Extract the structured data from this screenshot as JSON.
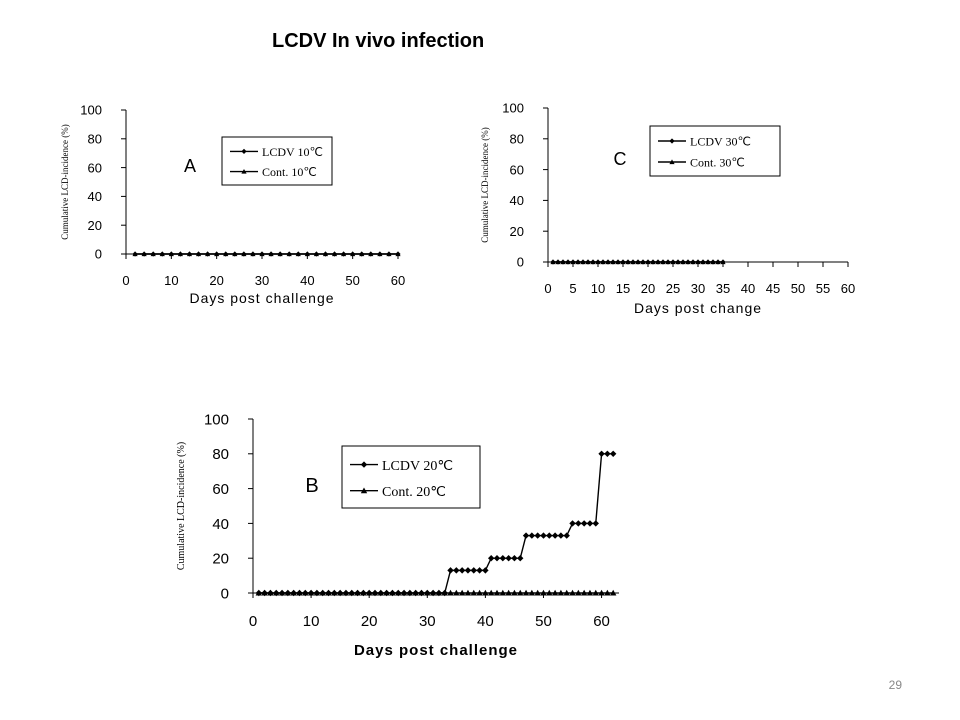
{
  "slide": {
    "title": "LCDV In vivo infection",
    "page_number": "29"
  },
  "chart_data": [
    {
      "id": "A",
      "type": "line",
      "panel_label": "A",
      "xlabel": "Days post challenge",
      "ylabel": "Cumulative LCD-incidence (%)",
      "xlim": [
        0,
        60
      ],
      "ylim": [
        0,
        100
      ],
      "xticks": [
        "0",
        "10",
        "20",
        "30",
        "40",
        "50",
        "60"
      ],
      "yticks": [
        "0",
        "20",
        "40",
        "60",
        "80",
        "100"
      ],
      "legend_position": "top-right",
      "series": [
        {
          "name": "LCDV 10℃",
          "marker": "diamond",
          "x": [
            2,
            4,
            6,
            8,
            10,
            12,
            14,
            16,
            18,
            20,
            22,
            24,
            26,
            28,
            30,
            32,
            34,
            36,
            38,
            40,
            42,
            44,
            46,
            48,
            50,
            52,
            54,
            56,
            58,
            60
          ],
          "y": [
            0,
            0,
            0,
            0,
            0,
            0,
            0,
            0,
            0,
            0,
            0,
            0,
            0,
            0,
            0,
            0,
            0,
            0,
            0,
            0,
            0,
            0,
            0,
            0,
            0,
            0,
            0,
            0,
            0,
            0
          ]
        },
        {
          "name": "Cont. 10℃",
          "marker": "triangle",
          "x": [
            2,
            4,
            6,
            8,
            10,
            12,
            14,
            16,
            18,
            20,
            22,
            24,
            26,
            28,
            30,
            32,
            34,
            36,
            38,
            40,
            42,
            44,
            46,
            48,
            50,
            52,
            54,
            56,
            58,
            60
          ],
          "y": [
            0,
            0,
            0,
            0,
            0,
            0,
            0,
            0,
            0,
            0,
            0,
            0,
            0,
            0,
            0,
            0,
            0,
            0,
            0,
            0,
            0,
            0,
            0,
            0,
            0,
            0,
            0,
            0,
            0,
            0
          ]
        }
      ]
    },
    {
      "id": "C",
      "type": "line",
      "panel_label": "C",
      "xlabel": "Days post change",
      "ylabel": "Cumulative LCD-incidence (%)",
      "xlim": [
        0,
        60
      ],
      "ylim": [
        0,
        100
      ],
      "xticks": [
        "0",
        "5",
        "10",
        "15",
        "20",
        "25",
        "30",
        "35",
        "40",
        "45",
        "50",
        "55",
        "60"
      ],
      "yticks": [
        "0",
        "20",
        "40",
        "60",
        "80",
        "100"
      ],
      "legend_position": "top-right",
      "series": [
        {
          "name": "LCDV 30℃",
          "marker": "diamond",
          "x": [
            1,
            2,
            3,
            4,
            5,
            6,
            7,
            8,
            9,
            10,
            11,
            12,
            13,
            14,
            15,
            16,
            17,
            18,
            19,
            20,
            21,
            22,
            23,
            24,
            25,
            26,
            27,
            28,
            29,
            30,
            31,
            32,
            33,
            34,
            35
          ],
          "y": [
            0,
            0,
            0,
            0,
            0,
            0,
            0,
            0,
            0,
            0,
            0,
            0,
            0,
            0,
            0,
            0,
            0,
            0,
            0,
            0,
            0,
            0,
            0,
            0,
            0,
            0,
            0,
            0,
            0,
            0,
            0,
            0,
            0,
            0,
            0
          ]
        },
        {
          "name": "Cont. 30℃",
          "marker": "triangle",
          "x": [
            1,
            2,
            3,
            4,
            5,
            6,
            7,
            8,
            9,
            10,
            11,
            12,
            13,
            14,
            15,
            16,
            17,
            18,
            19,
            20,
            21,
            22,
            23,
            24,
            25,
            26,
            27,
            28,
            29,
            30,
            31,
            32,
            33,
            34,
            35
          ],
          "y": [
            0,
            0,
            0,
            0,
            0,
            0,
            0,
            0,
            0,
            0,
            0,
            0,
            0,
            0,
            0,
            0,
            0,
            0,
            0,
            0,
            0,
            0,
            0,
            0,
            0,
            0,
            0,
            0,
            0,
            0,
            0,
            0,
            0,
            0,
            0
          ]
        }
      ]
    },
    {
      "id": "B",
      "type": "line",
      "panel_label": "B",
      "xlabel": "Days post challenge",
      "ylabel": "Cumulative LCD-incidence (%)",
      "xlim": [
        0,
        63
      ],
      "ylim": [
        0,
        100
      ],
      "xticks": [
        "0",
        "10",
        "20",
        "30",
        "40",
        "50",
        "60"
      ],
      "yticks": [
        "0",
        "20",
        "40",
        "60",
        "80",
        "100"
      ],
      "legend_position": "top-center",
      "series": [
        {
          "name": "LCDV 20℃",
          "marker": "diamond",
          "x": [
            1,
            2,
            3,
            4,
            5,
            6,
            7,
            8,
            9,
            10,
            11,
            12,
            13,
            14,
            15,
            16,
            17,
            18,
            19,
            20,
            21,
            22,
            23,
            24,
            25,
            26,
            27,
            28,
            29,
            30,
            31,
            32,
            33,
            34,
            35,
            36,
            37,
            38,
            39,
            40,
            41,
            42,
            43,
            44,
            45,
            46,
            47,
            48,
            49,
            50,
            51,
            52,
            53,
            54,
            55,
            56,
            57,
            58,
            59,
            60,
            61,
            62
          ],
          "y": [
            0,
            0,
            0,
            0,
            0,
            0,
            0,
            0,
            0,
            0,
            0,
            0,
            0,
            0,
            0,
            0,
            0,
            0,
            0,
            0,
            0,
            0,
            0,
            0,
            0,
            0,
            0,
            0,
            0,
            0,
            0,
            0,
            0,
            13,
            13,
            13,
            13,
            13,
            13,
            13,
            20,
            20,
            20,
            20,
            20,
            20,
            33,
            33,
            33,
            33,
            33,
            33,
            33,
            33,
            40,
            40,
            40,
            40,
            40,
            80,
            80,
            80
          ]
        },
        {
          "name": "Cont. 20℃",
          "marker": "triangle",
          "x": [
            1,
            2,
            3,
            4,
            5,
            6,
            7,
            8,
            9,
            10,
            11,
            12,
            13,
            14,
            15,
            16,
            17,
            18,
            19,
            20,
            21,
            22,
            23,
            24,
            25,
            26,
            27,
            28,
            29,
            30,
            31,
            32,
            33,
            34,
            35,
            36,
            37,
            38,
            39,
            40,
            41,
            42,
            43,
            44,
            45,
            46,
            47,
            48,
            49,
            50,
            51,
            52,
            53,
            54,
            55,
            56,
            57,
            58,
            59,
            60,
            61,
            62
          ],
          "y": [
            0,
            0,
            0,
            0,
            0,
            0,
            0,
            0,
            0,
            0,
            0,
            0,
            0,
            0,
            0,
            0,
            0,
            0,
            0,
            0,
            0,
            0,
            0,
            0,
            0,
            0,
            0,
            0,
            0,
            0,
            0,
            0,
            0,
            0,
            0,
            0,
            0,
            0,
            0,
            0,
            0,
            0,
            0,
            0,
            0,
            0,
            0,
            0,
            0,
            0,
            0,
            0,
            0,
            0,
            0,
            0,
            0,
            0,
            0,
            0,
            0,
            0
          ]
        }
      ]
    }
  ]
}
